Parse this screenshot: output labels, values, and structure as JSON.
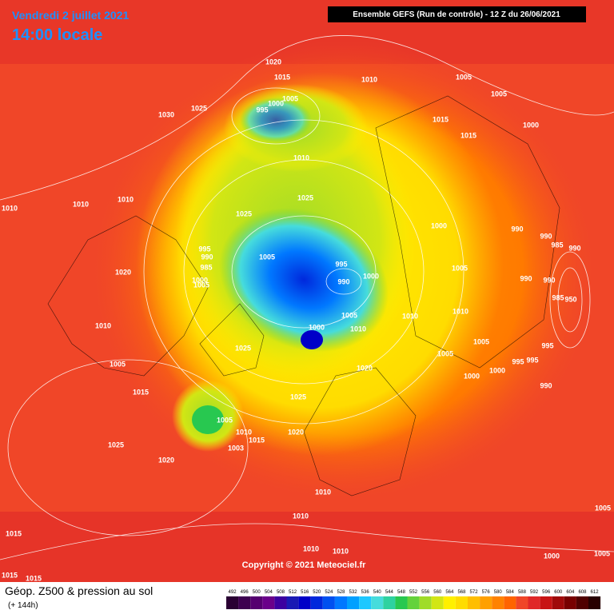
{
  "header": {
    "date": "Vendredi 2 juillet 2021",
    "time": "14:00 locale",
    "run": "Ensemble GEFS  (Run de contrôle)  -  12 Z du 26/06/2021"
  },
  "footer": {
    "title": "Géop. Z500 & pression au sol",
    "lead": "(+ 144h)",
    "copyright": "Copyright © 2021 Meteociel.fr"
  },
  "scale": {
    "labels": [
      492,
      496,
      500,
      504,
      508,
      512,
      516,
      520,
      524,
      528,
      532,
      536,
      540,
      544,
      548,
      552,
      556,
      560,
      564,
      568,
      572,
      576,
      580,
      584,
      588,
      592,
      596,
      600,
      604,
      608,
      612
    ],
    "colors": [
      "#2a0033",
      "#3d0050",
      "#550070",
      "#6a008a",
      "#3c00a0",
      "#1a1ab4",
      "#0000c8",
      "#0028dc",
      "#0050f0",
      "#0078ff",
      "#00a0ff",
      "#1ec8ff",
      "#46dcdc",
      "#2ed2a0",
      "#28c850",
      "#64d23c",
      "#a0dc28",
      "#d2e614",
      "#fff000",
      "#ffdc00",
      "#ffbe00",
      "#ffa000",
      "#ff8200",
      "#ff6400",
      "#f04628",
      "#e02828",
      "#c81414",
      "#a00a0a",
      "#780000",
      "#500000",
      "#280000"
    ]
  },
  "isobar_labels": [
    "1020",
    "1015",
    "1010",
    "1005",
    "1005",
    "1030",
    "1025",
    "995",
    "1000",
    "1005",
    "1015",
    "1000",
    "1015",
    "1010",
    "1010",
    "1010",
    "1010",
    "1025",
    "1025",
    "1000",
    "990",
    "990",
    "985",
    "990",
    "995",
    "990",
    "985",
    "1005",
    "995",
    "990",
    "1000",
    "1005",
    "990",
    "990",
    "1020",
    "1000",
    "1005",
    "985",
    "950",
    "1010",
    "1005",
    "1010",
    "1010",
    "1000",
    "1010",
    "1005",
    "1005",
    "995",
    "995",
    "995",
    "1000",
    "1000",
    "1025",
    "1005",
    "1020",
    "1015",
    "990",
    "1025",
    "1005",
    "1010",
    "1015",
    "1003",
    "1020",
    "1025",
    "1020",
    "1010",
    "1010",
    "1005",
    "1015",
    "1010",
    "1010",
    "1000",
    "1005",
    "1015",
    "1015"
  ]
}
